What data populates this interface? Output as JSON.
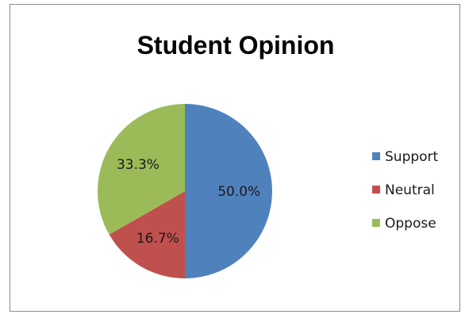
{
  "chart_data": {
    "type": "pie",
    "title": "Student Opinion",
    "categories": [
      "Support",
      "Neutral",
      "Oppose"
    ],
    "values": [
      50.0,
      16.7,
      33.3
    ],
    "labels": [
      "50.0%",
      "16.7%",
      "33.3%"
    ],
    "colors": [
      "#4f81bd",
      "#c0504d",
      "#9bbb59"
    ],
    "legend_position": "right"
  }
}
